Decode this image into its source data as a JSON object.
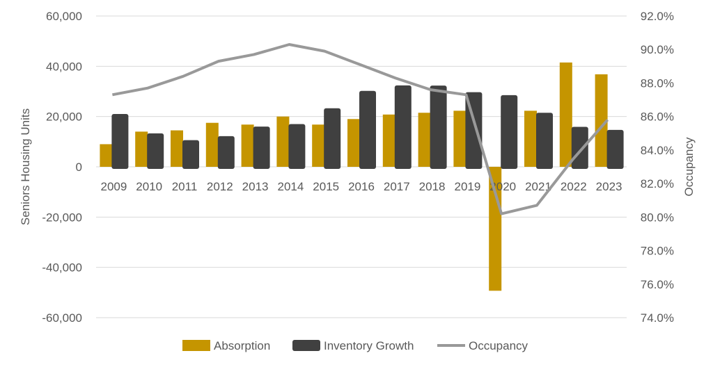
{
  "chart_data": {
    "type": "bar+line",
    "categories": [
      "2009",
      "2010",
      "2011",
      "2012",
      "2013",
      "2014",
      "2015",
      "2016",
      "2017",
      "2018",
      "2019",
      "2020",
      "2021",
      "2022",
      "2023"
    ],
    "series": [
      {
        "name": "Absorption",
        "type": "bar",
        "axis": "left",
        "color": "#C59500",
        "values": [
          9000,
          14000,
          14500,
          17500,
          16800,
          20000,
          16800,
          19000,
          20800,
          21500,
          22300,
          -49300,
          22300,
          41500,
          36800
        ]
      },
      {
        "name": "Inventory Growth",
        "type": "bar",
        "axis": "left",
        "color": "#404040",
        "values": [
          21000,
          13300,
          10600,
          12200,
          16000,
          17000,
          23300,
          30200,
          32400,
          32300,
          29700,
          28500,
          21500,
          15900,
          14700
        ]
      },
      {
        "name": "Occupancy",
        "type": "line",
        "axis": "right",
        "color": "#999999",
        "values": [
          87.3,
          87.7,
          88.4,
          89.3,
          89.7,
          90.3,
          89.9,
          89.1,
          88.3,
          87.6,
          87.3,
          80.2,
          80.7,
          83.4,
          85.8
        ]
      }
    ],
    "ylabel": "Seniors Housing Units",
    "y2label": "Occupancy",
    "ylim": [
      -60000,
      60000
    ],
    "y2lim": [
      74,
      92
    ],
    "yticks": [
      "60,000",
      "40,000",
      "20,000",
      "0",
      "-20,000",
      "-40,000",
      "-60,000"
    ],
    "y2ticks": [
      "92.0%",
      "90.0%",
      "88.0%",
      "86.0%",
      "84.0%",
      "82.0%",
      "80.0%",
      "78.0%",
      "76.0%",
      "74.0%"
    ],
    "grid": true,
    "legend": "bottom"
  }
}
